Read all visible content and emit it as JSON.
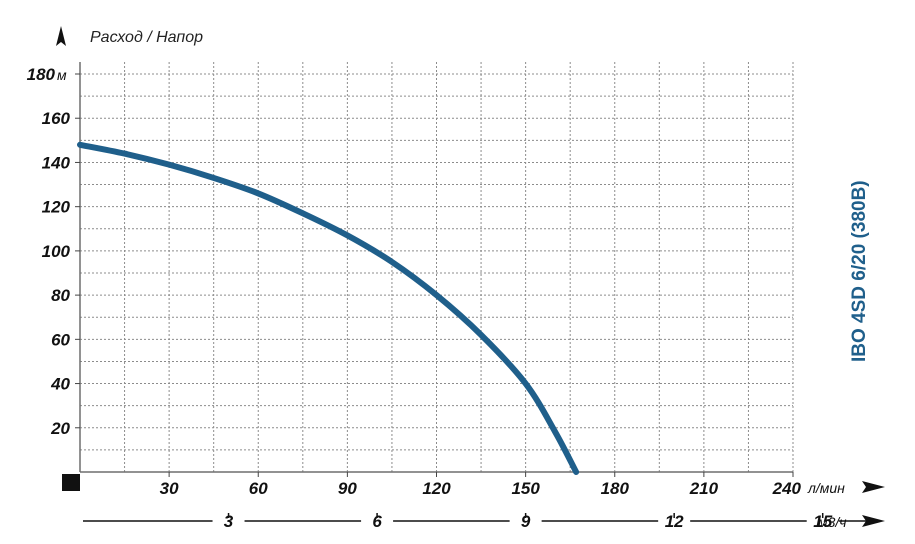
{
  "chart_data": {
    "type": "line",
    "title": "IBO 4SD 6/20 (380B)",
    "axis_title": "Расход / Напор",
    "y_unit": "м",
    "x_unit": "л/мин",
    "x2_unit": "м3/ч",
    "ylim": [
      0,
      180
    ],
    "xlim": [
      0,
      240
    ],
    "y_ticks": [
      20,
      40,
      60,
      80,
      100,
      120,
      140,
      160,
      180
    ],
    "x_ticks": [
      30,
      60,
      90,
      120,
      150,
      180,
      210,
      240
    ],
    "x2_ticks": [
      3,
      6,
      9,
      12,
      15
    ],
    "grid": true,
    "series_color": "#1f5f8b",
    "series": [
      {
        "x": [
          0,
          15,
          30,
          45,
          60,
          75,
          90,
          105,
          120,
          135,
          150,
          160,
          167
        ],
        "y": [
          148,
          144,
          139,
          133,
          126,
          117,
          107,
          95,
          80,
          62,
          40,
          18,
          0
        ]
      }
    ]
  }
}
